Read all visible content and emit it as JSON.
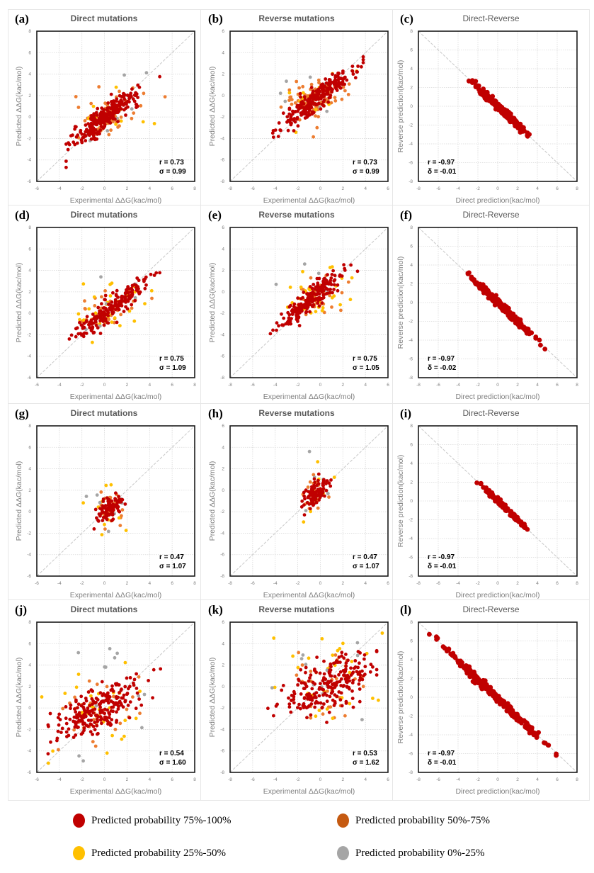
{
  "colors": {
    "p75_100": "#c00000",
    "p50_75": "#ed7d31",
    "p25_50": "#ffc000",
    "p0_25": "#a5a5a5",
    "diagonal": "#c8c8c8",
    "grid": "#d9d9d9",
    "axis_text": "#808080"
  },
  "legend": [
    {
      "label": "Predicted probability  75%-100%",
      "color": "#c00000"
    },
    {
      "label": "Predicted probability 50%-75%",
      "color": "#c55a11"
    },
    {
      "label": "Predicted probability 25%-50%",
      "color": "#ffc000"
    },
    {
      "label": "Predicted probability 0%-25%",
      "color": "#a5a5a5"
    }
  ],
  "chart_data": [
    {
      "id": "a",
      "letter": "(a)",
      "type": "scatter",
      "title": "Direct mutations",
      "title_bold": true,
      "xlabel": "Experimental ΔΔG(kac/mol)",
      "ylabel": "Predicted ΔΔG(kac/mol)",
      "xlim": [
        -6,
        8
      ],
      "ylim": [
        -6,
        8
      ],
      "xticks": [
        -6,
        -4,
        -2,
        0,
        2,
        4,
        6,
        8
      ],
      "yticks": [
        -6,
        -4,
        -2,
        0,
        2,
        4,
        6,
        8
      ],
      "diagonal": "positive",
      "grid": true,
      "stats": [
        "r = 0.73",
        "σ = 0.99"
      ],
      "stats_position": "bottom-right",
      "spread": 0.55,
      "center": [
        0.2,
        0.1
      ],
      "slope": 0.8,
      "n": {
        "p75_100": 260,
        "p50_75": 90,
        "p25_50": 14,
        "p0_25": 7
      },
      "range": [
        -3.4,
        4.9
      ]
    },
    {
      "id": "b",
      "letter": "(b)",
      "type": "scatter",
      "title": "Reverse mutations",
      "title_bold": true,
      "xlabel": "Experimental ΔΔG(kac/mol)",
      "ylabel": "Predicted ΔΔG(kac/mol)",
      "xlim": [
        -8,
        6
      ],
      "ylim": [
        -8,
        6
      ],
      "xticks": [
        -8,
        -6,
        -4,
        -2,
        0,
        2,
        4,
        6
      ],
      "yticks": [
        -8,
        -6,
        -4,
        -2,
        0,
        2,
        4,
        6
      ],
      "diagonal": "positive",
      "grid": true,
      "stats": [
        "r = 0.73",
        "σ = 0.99"
      ],
      "stats_position": "bottom-right",
      "spread": 0.55,
      "center": [
        -0.3,
        -0.2
      ],
      "slope": 0.8,
      "n": {
        "p75_100": 260,
        "p50_75": 90,
        "p25_50": 14,
        "p0_25": 7
      },
      "range": [
        -4.9,
        3.8
      ]
    },
    {
      "id": "c",
      "letter": "(c)",
      "type": "scatter",
      "title": "Direct-Reverse",
      "title_bold": false,
      "xlabel": "Direct prediction(kac/mol)",
      "ylabel": "Reverse prediction(kac/mol)",
      "xlim": [
        -8,
        8
      ],
      "ylim": [
        -8,
        8
      ],
      "xticks": [
        -8,
        -6,
        -4,
        -2,
        0,
        2,
        4,
        6,
        8
      ],
      "yticks": [
        -8,
        -6,
        -4,
        -2,
        0,
        2,
        4,
        6,
        8
      ],
      "diagonal": "negative",
      "grid": true,
      "stats": [
        "r = -0.97",
        "δ = -0.01"
      ],
      "stats_position": "bottom-left",
      "spread": 0.18,
      "center": [
        0.3,
        -0.3
      ],
      "slope": -1,
      "n": {
        "p75_100": 300
      },
      "range": [
        -2.9,
        4.1
      ]
    },
    {
      "id": "d",
      "letter": "(d)",
      "type": "scatter",
      "title": "Direct mutations",
      "title_bold": true,
      "xlabel": "Experimental ΔΔG(kac/mol)",
      "ylabel": "Predicted ΔΔG(kac/mol)",
      "xlim": [
        -6,
        8
      ],
      "ylim": [
        -6,
        8
      ],
      "xticks": [
        -6,
        -4,
        -2,
        0,
        2,
        4,
        6,
        8
      ],
      "yticks": [
        -6,
        -4,
        -2,
        0,
        2,
        4,
        6,
        8
      ],
      "diagonal": "positive",
      "grid": true,
      "stats": [
        "r = 0.75",
        "σ = 1.09"
      ],
      "stats_position": "bottom-right",
      "spread": 0.55,
      "center": [
        0.6,
        0.5
      ],
      "slope": 0.8,
      "n": {
        "p75_100": 200,
        "p50_75": 40,
        "p25_50": 30,
        "p0_25": 7
      },
      "range": [
        -3.4,
        4.9
      ]
    },
    {
      "id": "e",
      "letter": "(e)",
      "type": "scatter",
      "title": "Reverse mutations",
      "title_bold": true,
      "xlabel": "Experimental ΔΔG(kac/mol)",
      "ylabel": "Predicted ΔΔG(kac/mol)",
      "xlim": [
        -8,
        6
      ],
      "ylim": [
        -8,
        6
      ],
      "xticks": [
        -8,
        -6,
        -4,
        -2,
        0,
        2,
        4,
        6
      ],
      "yticks": [
        -8,
        -6,
        -4,
        -2,
        0,
        2,
        4,
        6
      ],
      "diagonal": "positive",
      "grid": true,
      "stats": [
        "r = 0.75",
        "σ = 1.05"
      ],
      "stats_position": "bottom-right",
      "spread": 0.55,
      "center": [
        -0.6,
        -0.5
      ],
      "slope": 0.8,
      "n": {
        "p75_100": 200,
        "p50_75": 40,
        "p25_50": 30,
        "p0_25": 7
      },
      "range": [
        -4.9,
        3.3
      ]
    },
    {
      "id": "f",
      "letter": "(f)",
      "type": "scatter",
      "title": "Direct-Reverse",
      "title_bold": false,
      "xlabel": "Direct prediction(kac/mol)",
      "ylabel": "Reverse prediction(kac/mol)",
      "xlim": [
        -8,
        8
      ],
      "ylim": [
        -8,
        8
      ],
      "xticks": [
        -8,
        -6,
        -4,
        -2,
        0,
        2,
        4,
        6,
        8
      ],
      "yticks": [
        -8,
        -6,
        -4,
        -2,
        0,
        2,
        4,
        6,
        8
      ],
      "diagonal": "negative",
      "grid": true,
      "stats": [
        "r = -0.97",
        "δ = -0.02"
      ],
      "stats_position": "bottom-left",
      "spread": 0.18,
      "center": [
        0.5,
        -0.5
      ],
      "slope": -1,
      "n": {
        "p75_100": 280
      },
      "range": [
        -3,
        5
      ]
    },
    {
      "id": "g",
      "letter": "(g)",
      "type": "scatter",
      "title": "Direct mutations",
      "title_bold": true,
      "xlabel": "Experimental ΔΔG(kac/mol)",
      "ylabel": "Predicted ΔΔG(kac/mol)",
      "xlim": [
        -6,
        8
      ],
      "ylim": [
        -6,
        8
      ],
      "xticks": [
        -6,
        -4,
        -2,
        0,
        2,
        4,
        6,
        8
      ],
      "yticks": [
        -6,
        -4,
        -2,
        0,
        2,
        4,
        6,
        8
      ],
      "diagonal": "positive",
      "grid": true,
      "stats": [
        "r = 0.47",
        "σ = 1.07"
      ],
      "stats_position": "bottom-right",
      "spread": 0.55,
      "center": [
        0.5,
        0.3
      ],
      "slope": 0.6,
      "n": {
        "p75_100": 90,
        "p50_75": 25,
        "p25_50": 10,
        "p0_25": 7
      },
      "range": [
        -1,
        2.4
      ]
    },
    {
      "id": "h",
      "letter": "(h)",
      "type": "scatter",
      "title": "Reverse mutations",
      "title_bold": true,
      "xlabel": "Experimental ΔΔG(kac/mol)",
      "ylabel": "Predicted ΔΔG(kac/mol)",
      "xlim": [
        -8,
        6
      ],
      "ylim": [
        -8,
        6
      ],
      "xticks": [
        -8,
        -6,
        -4,
        -2,
        0,
        2,
        4,
        6
      ],
      "yticks": [
        -8,
        -6,
        -4,
        -2,
        0,
        2,
        4,
        6
      ],
      "diagonal": "positive",
      "grid": true,
      "stats": [
        "r = 0.47",
        "σ = 1.07"
      ],
      "stats_position": "bottom-right",
      "spread": 0.55,
      "center": [
        -0.5,
        -0.3
      ],
      "slope": 0.6,
      "n": {
        "p75_100": 90,
        "p50_75": 25,
        "p25_50": 10,
        "p0_25": 7
      },
      "range": [
        -2.4,
        1
      ]
    },
    {
      "id": "i",
      "letter": "(i)",
      "type": "scatter",
      "title": "Direct-Reverse",
      "title_bold": false,
      "xlabel": "Direct prediction(kac/mol)",
      "ylabel": "Reverse prediction(kac/mol)",
      "xlim": [
        -8,
        8
      ],
      "ylim": [
        -8,
        8
      ],
      "xticks": [
        -8,
        -6,
        -4,
        -2,
        0,
        2,
        4,
        6,
        8
      ],
      "yticks": [
        -8,
        -6,
        -4,
        -2,
        0,
        2,
        4,
        6,
        8
      ],
      "diagonal": "negative",
      "grid": true,
      "stats": [
        "r = -0.97",
        "δ = -0.01"
      ],
      "stats_position": "bottom-left",
      "spread": 0.15,
      "center": [
        0.3,
        -0.3
      ],
      "slope": -1,
      "n": {
        "p75_100": 130
      },
      "range": [
        -2.1,
        3.9
      ]
    },
    {
      "id": "j",
      "letter": "(j)",
      "type": "scatter",
      "title": "Direct mutations",
      "title_bold": true,
      "xlabel": "Experimental ΔΔG(kac/mol)",
      "ylabel": "Predicted ΔΔG(kac/mol)",
      "xlim": [
        -6,
        8
      ],
      "ylim": [
        -6,
        8
      ],
      "xticks": [
        -6,
        -4,
        -2,
        0,
        2,
        4,
        6,
        8
      ],
      "yticks": [
        -6,
        -4,
        -2,
        0,
        2,
        4,
        6,
        8
      ],
      "diagonal": "positive",
      "grid": true,
      "stats": [
        "r = 0.54",
        "σ = 1.60"
      ],
      "stats_position": "bottom-right",
      "spread": 1.1,
      "center": [
        -0.8,
        -0.3
      ],
      "slope": 0.45,
      "n": {
        "p75_100": 230,
        "p50_75": 35,
        "p25_50": 30,
        "p0_25": 14
      },
      "range": [
        -5,
        5.5
      ]
    },
    {
      "id": "k",
      "letter": "(k)",
      "type": "scatter",
      "title": "Reverse mutations",
      "title_bold": true,
      "xlabel": "Experimental ΔΔG(kac/mol)",
      "ylabel": "Predicted ΔΔG(kac/mol)",
      "xlim": [
        -8,
        6
      ],
      "ylim": [
        -8,
        6
      ],
      "xticks": [
        -8,
        -6,
        -4,
        -2,
        0,
        2,
        4,
        6
      ],
      "yticks": [
        -8,
        -6,
        -4,
        -2,
        0,
        2,
        4,
        6
      ],
      "diagonal": "positive",
      "grid": true,
      "stats": [
        "r = 0.53",
        "σ = 1.62"
      ],
      "stats_position": "bottom-right",
      "spread": 1.1,
      "center": [
        0.8,
        0.1
      ],
      "slope": 0.45,
      "n": {
        "p75_100": 230,
        "p50_75": 35,
        "p25_50": 30,
        "p0_25": 14
      },
      "range": [
        -5.5,
        5
      ]
    },
    {
      "id": "l",
      "letter": "(l)",
      "type": "scatter",
      "title": "Direct-Reverse",
      "title_bold": false,
      "xlabel": "Direct prediction(kac/mol)",
      "ylabel": "Reverse prediction(kac/mol)",
      "xlim": [
        -8,
        8
      ],
      "ylim": [
        -8,
        8
      ],
      "xticks": [
        -8,
        -6,
        -4,
        -2,
        0,
        2,
        4,
        6,
        8
      ],
      "yticks": [
        -8,
        -6,
        -4,
        -2,
        0,
        2,
        4,
        6,
        8
      ],
      "diagonal": "negative",
      "grid": true,
      "stats": [
        "r = -0.97",
        "δ = -0.01"
      ],
      "stats_position": "bottom-left",
      "spread": 0.2,
      "center": [
        -0.5,
        0.4
      ],
      "slope": -1,
      "n": {
        "p75_100": 330
      },
      "range": [
        -6.9,
        5.9
      ]
    }
  ]
}
